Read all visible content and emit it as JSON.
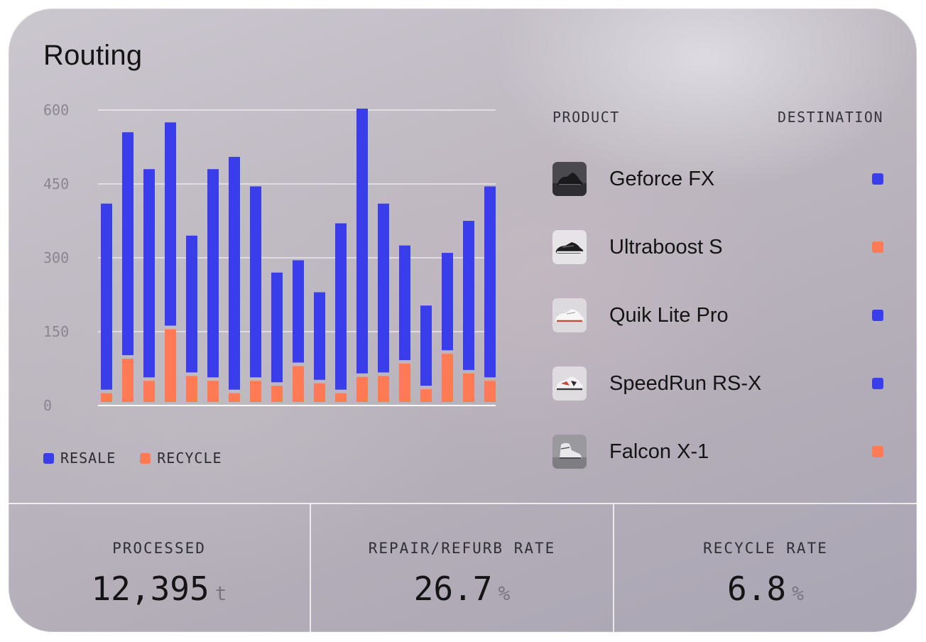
{
  "title": "Routing",
  "colors": {
    "resale": "#3a3eea",
    "recycle": "#ff7a55"
  },
  "chart_data": {
    "type": "bar",
    "stacked": true,
    "yticks": [
      600,
      450,
      300,
      150,
      0
    ],
    "ylim": [
      0,
      600
    ],
    "grid": true,
    "legend_position": "bottom-left",
    "series": [
      {
        "name": "RESALE",
        "values": [
          385,
          460,
          430,
          420,
          285,
          430,
          480,
          395,
          230,
          215,
          185,
          345,
          545,
          350,
          240,
          170,
          205,
          310,
          395
        ]
      },
      {
        "name": "RECYCLE",
        "values": [
          25,
          95,
          50,
          155,
          60,
          50,
          25,
          50,
          40,
          80,
          45,
          25,
          58,
          60,
          85,
          33,
          105,
          65,
          50
        ]
      }
    ]
  },
  "table": {
    "headers": {
      "product": "PRODUCT",
      "destination": "DESTINATION"
    },
    "rows": [
      {
        "name": "Geforce FX",
        "destination": "resale",
        "thumb": "dark-sneaker-icon"
      },
      {
        "name": "Ultraboost S",
        "destination": "recycle",
        "thumb": "black-white-sneaker-icon"
      },
      {
        "name": "Quik Lite Pro",
        "destination": "resale",
        "thumb": "white-sneaker-icon"
      },
      {
        "name": "SpeedRun RS-X",
        "destination": "resale",
        "thumb": "chunky-sneaker-icon"
      },
      {
        "name": "Falcon X-1",
        "destination": "recycle",
        "thumb": "high-top-sneaker-icon"
      }
    ]
  },
  "stats": [
    {
      "label": "PROCESSED",
      "value": "12,395",
      "unit": "t"
    },
    {
      "label": "REPAIR/REFURB RATE",
      "value": "26.7",
      "unit": "%"
    },
    {
      "label": "RECYCLE RATE",
      "value": "6.8",
      "unit": "%"
    }
  ]
}
